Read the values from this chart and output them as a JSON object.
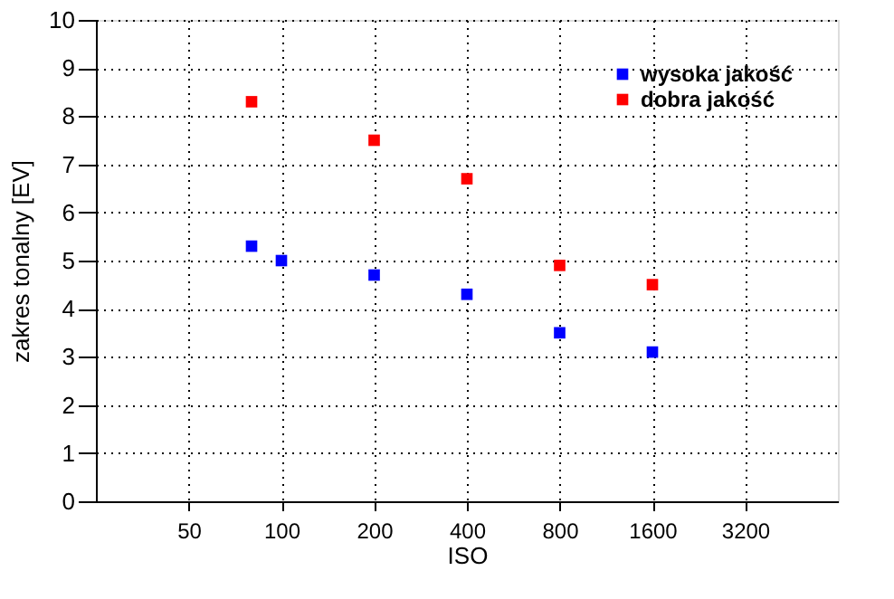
{
  "chart_data": {
    "type": "scatter",
    "xlabel": "ISO",
    "ylabel": "zakres tonalny [EV]",
    "log": "x",
    "xlim": [
      25,
      6400
    ],
    "xticks": [
      50,
      100,
      200,
      400,
      800,
      1600,
      3200
    ],
    "ylim": [
      0,
      10
    ],
    "yticks": [
      0,
      1,
      2,
      3,
      4,
      5,
      6,
      7,
      8,
      9,
      10
    ],
    "grid": true,
    "legend": "top right",
    "marker": "square",
    "series": [
      {
        "name": "wysoka jakość",
        "color": "#0000ff",
        "x": [
          80,
          100,
          200,
          400,
          800,
          1600
        ],
        "values": [
          5.3,
          5.0,
          4.7,
          4.3,
          3.5,
          3.1
        ]
      },
      {
        "name": "dobra jakość",
        "color": "#ff0000",
        "x": [
          80,
          200,
          400,
          800,
          1600
        ],
        "values": [
          8.3,
          7.5,
          6.7,
          4.9,
          4.5
        ]
      }
    ]
  }
}
